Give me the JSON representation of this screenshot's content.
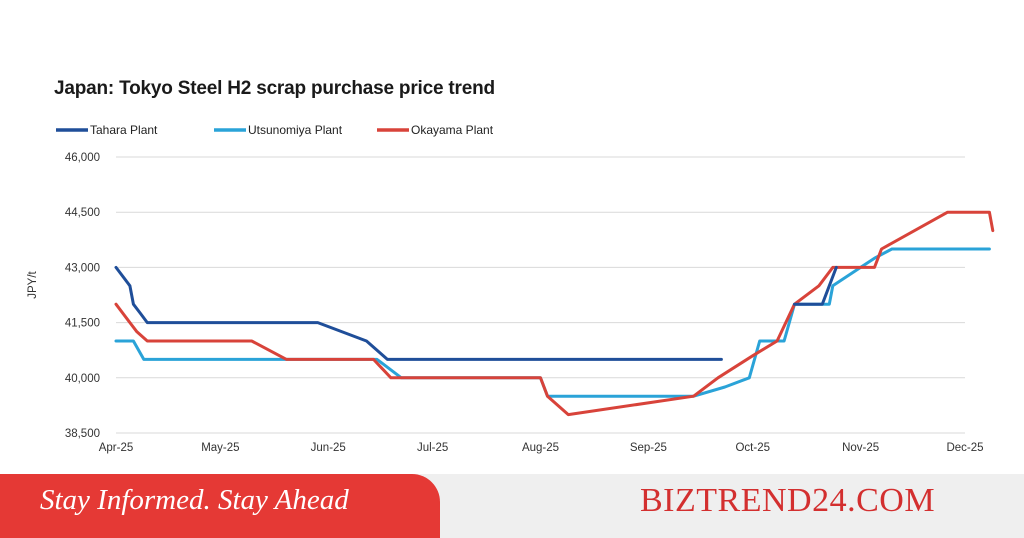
{
  "chart_data": {
    "type": "line",
    "title": "Japan: Tokyo Steel H2 scrap purchase price trend",
    "ylabel": "JPY/t",
    "xlabel": "",
    "ylim": [
      38500,
      46000
    ],
    "yticks": [
      38500,
      40000,
      41500,
      43000,
      44500,
      46000
    ],
    "ytick_labels": [
      "38,500",
      "40,000",
      "41,500",
      "43,000",
      "44,500",
      "46,000"
    ],
    "xlim": [
      "2025-04-01",
      "2025-12-01"
    ],
    "xticks": [
      "2025-04-01",
      "2025-05-01",
      "2025-06-01",
      "2025-07-01",
      "2025-08-01",
      "2025-09-01",
      "2025-10-01",
      "2025-11-01",
      "2025-12-01"
    ],
    "xtick_labels": [
      "Apr-25",
      "May-25",
      "Jun-25",
      "Jul-25",
      "Aug-25",
      "Sep-25",
      "Oct-25",
      "Nov-25",
      "Dec-25"
    ],
    "grid": true,
    "legend_position": "top-left",
    "series": [
      {
        "name": "Tahara Plant",
        "color": "#1f4e99",
        "points": [
          [
            "2025-04-01",
            43000
          ],
          [
            "2025-04-05",
            42500
          ],
          [
            "2025-04-06",
            42000
          ],
          [
            "2025-04-08",
            41750
          ],
          [
            "2025-04-10",
            41500
          ],
          [
            "2025-05-29",
            41500
          ],
          [
            "2025-06-12",
            41000
          ],
          [
            "2025-06-18",
            40500
          ],
          [
            "2025-09-22",
            40500
          ]
        ]
      },
      {
        "name": "Utsunomiya Plant",
        "color": "#2aa3d8",
        "points": [
          [
            "2025-04-01",
            41000
          ],
          [
            "2025-04-06",
            41000
          ],
          [
            "2025-04-09",
            40500
          ],
          [
            "2025-06-15",
            40500
          ],
          [
            "2025-06-22",
            40000
          ],
          [
            "2025-08-01",
            40000
          ],
          [
            "2025-08-03",
            39500
          ],
          [
            "2025-09-14",
            39500
          ],
          [
            "2025-09-23",
            39750
          ],
          [
            "2025-09-30",
            40000
          ],
          [
            "2025-10-03",
            41000
          ],
          [
            "2025-10-10",
            41000
          ],
          [
            "2025-10-13",
            42000
          ],
          [
            "2025-10-23",
            42000
          ],
          [
            "2025-10-24",
            42500
          ],
          [
            "2025-11-01",
            43000
          ],
          [
            "2025-11-05",
            43250
          ],
          [
            "2025-11-10",
            43500
          ],
          [
            "2025-12-08",
            43500
          ]
        ]
      },
      {
        "name": "Okayama Plant",
        "color": "#d8433a",
        "points": [
          [
            "2025-04-01",
            42000
          ],
          [
            "2025-04-05",
            41500
          ],
          [
            "2025-04-07",
            41250
          ],
          [
            "2025-04-10",
            41000
          ],
          [
            "2025-05-10",
            41000
          ],
          [
            "2025-05-20",
            40500
          ],
          [
            "2025-06-14",
            40500
          ],
          [
            "2025-06-19",
            40000
          ],
          [
            "2025-08-01",
            40000
          ],
          [
            "2025-08-03",
            39500
          ],
          [
            "2025-08-09",
            39000
          ],
          [
            "2025-09-14",
            39500
          ],
          [
            "2025-09-21",
            40000
          ],
          [
            "2025-10-01",
            40600
          ],
          [
            "2025-10-08",
            41000
          ],
          [
            "2025-10-13",
            42000
          ],
          [
            "2025-10-20",
            42500
          ],
          [
            "2025-10-24",
            43000
          ],
          [
            "2025-11-05",
            43000
          ],
          [
            "2025-11-07",
            43500
          ],
          [
            "2025-11-26",
            44500
          ],
          [
            "2025-12-08",
            44500
          ],
          [
            "2025-12-09",
            44000
          ]
        ]
      },
      {
        "name": "Tahara Plant (Oct)",
        "color": "#1f4e99",
        "legend": false,
        "points": [
          [
            "2025-10-13",
            42000
          ],
          [
            "2025-10-21",
            42000
          ],
          [
            "2025-10-25",
            43000
          ]
        ]
      }
    ]
  },
  "footer": {
    "tagline": "Stay Informed. Stay Ahead",
    "brand": "BIZTREND24.COM",
    "banner_color": "#e53935",
    "brand_color": "#d32f2f"
  }
}
